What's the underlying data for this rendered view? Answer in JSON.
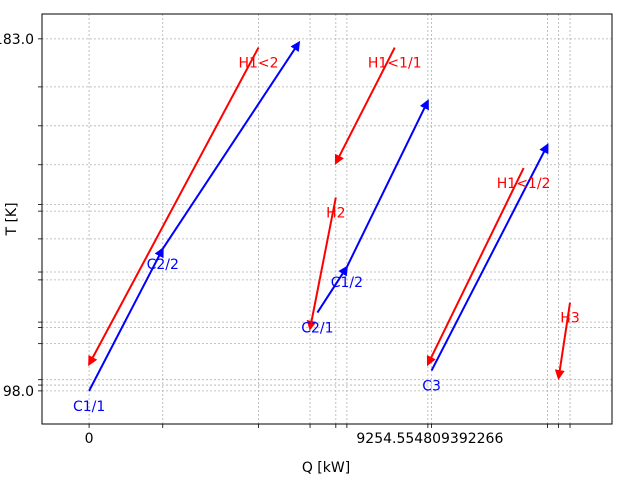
{
  "chart_data": {
    "type": "line",
    "title": "",
    "xlabel": "Q [kW]",
    "ylabel": "T [K]",
    "xlim": [
      -1279,
      14200
    ],
    "ylim": [
      90.0,
      189.0
    ],
    "x_tick_labels": [
      {
        "value": 0,
        "label": "0"
      },
      {
        "value": 9254.554809392266,
        "label": "9254.554809392266"
      }
    ],
    "y_tick_labels": [
      {
        "value": 98.0,
        "label": "98.0"
      },
      {
        "value": 183.0,
        "label": "183.0"
      }
    ],
    "x_grid": [
      0,
      2000,
      4600,
      6000,
      6700,
      7000,
      9200,
      9300,
      12450,
      12750,
      13060
    ],
    "y_grid": [
      98.0,
      99.4,
      100.7,
      109.4,
      113.3,
      114.6,
      124.8,
      126.7,
      134.7,
      141.4,
      143.0,
      152.6,
      162.0,
      171.4,
      183.0
    ],
    "grid": true,
    "legend": "none",
    "series": [
      {
        "name": "H1<2",
        "color": "#ff0000",
        "points": [
          [
            4600,
            180.9
          ],
          [
            0,
            104.4
          ]
        ]
      },
      {
        "name": "C2/2",
        "color": "#0000ff",
        "points": [
          [
            2000,
            132.3
          ],
          [
            5700,
            182.1
          ]
        ]
      },
      {
        "name": "C1/1",
        "color": "#0000ff",
        "points": [
          [
            0,
            98.0
          ],
          [
            2000,
            132.3
          ]
        ]
      },
      {
        "name": "H1<1/1",
        "color": "#ff0000",
        "points": [
          [
            8300,
            180.9
          ],
          [
            6700,
            153.0
          ]
        ]
      },
      {
        "name": "H2",
        "color": "#ff0000",
        "points": [
          [
            6700,
            144.7
          ],
          [
            6000,
            113.0
          ]
        ]
      },
      {
        "name": "C2/1",
        "color": "#0000ff",
        "points": [
          [
            6200,
            116.9
          ],
          [
            7000,
            127.9
          ]
        ]
      },
      {
        "name": "C1/2",
        "color": "#0000ff",
        "points": [
          [
            7000,
            127.9
          ],
          [
            9200,
            168.0
          ]
        ]
      },
      {
        "name": "H1<1/2",
        "color": "#ff0000",
        "points": [
          [
            11800,
            151.8
          ],
          [
            9200,
            104.4
          ]
        ]
      },
      {
        "name": "C3",
        "color": "#0000ff",
        "points": [
          [
            9300,
            102.9
          ],
          [
            12450,
            157.4
          ]
        ]
      },
      {
        "name": "H3",
        "color": "#ff0000",
        "points": [
          [
            13060,
            119.3
          ],
          [
            12750,
            101.1
          ]
        ]
      }
    ],
    "annotations": [
      {
        "text": "H1<2",
        "color": "#ff0000",
        "x": 4600,
        "y": 180.9
      },
      {
        "text": "C2/2",
        "color": "#0000ff",
        "x": 2000,
        "y": 132.3
      },
      {
        "text": "C1/1",
        "color": "#0000ff",
        "x": 0,
        "y": 98.0
      },
      {
        "text": "H1<1/1",
        "color": "#ff0000",
        "x": 8300,
        "y": 180.9
      },
      {
        "text": "H2",
        "color": "#ff0000",
        "x": 6700,
        "y": 144.7
      },
      {
        "text": "C2/1",
        "color": "#0000ff",
        "x": 6200,
        "y": 116.9
      },
      {
        "text": "C1/2",
        "color": "#0000ff",
        "x": 7000,
        "y": 127.9
      },
      {
        "text": "H1<1/2",
        "color": "#ff0000",
        "x": 11800,
        "y": 151.8
      },
      {
        "text": "C3",
        "color": "#0000ff",
        "x": 9300,
        "y": 102.9
      },
      {
        "text": "H3",
        "color": "#ff0000",
        "x": 13060,
        "y": 119.3
      }
    ]
  }
}
